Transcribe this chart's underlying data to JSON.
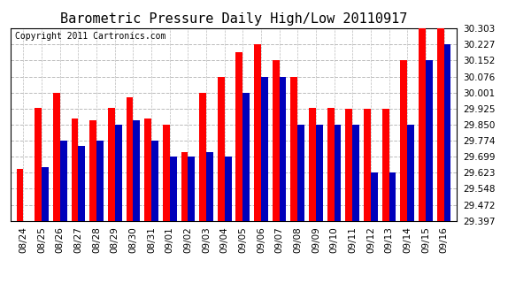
{
  "title": "Barometric Pressure Daily High/Low 20110917",
  "copyright_text": "Copyright 2011 Cartronics.com",
  "dates": [
    "08/24",
    "08/25",
    "08/26",
    "08/27",
    "08/28",
    "08/29",
    "08/30",
    "08/31",
    "09/01",
    "09/02",
    "09/03",
    "09/04",
    "09/05",
    "09/06",
    "09/07",
    "09/08",
    "09/09",
    "09/10",
    "09/11",
    "09/12",
    "09/13",
    "09/14",
    "09/15",
    "09/16"
  ],
  "highs": [
    29.64,
    29.93,
    30.001,
    29.88,
    29.87,
    29.93,
    29.98,
    29.88,
    29.85,
    29.72,
    30.001,
    30.076,
    30.19,
    30.227,
    30.152,
    30.076,
    29.93,
    29.93,
    29.925,
    29.925,
    29.925,
    30.152,
    30.303,
    30.303
  ],
  "lows": [
    29.397,
    29.65,
    29.774,
    29.75,
    29.774,
    29.85,
    29.87,
    29.774,
    29.699,
    29.699,
    29.72,
    29.699,
    30.001,
    30.076,
    30.076,
    29.85,
    29.85,
    29.85,
    29.85,
    29.623,
    29.623,
    29.85,
    30.152,
    30.227
  ],
  "ymin": 29.397,
  "ymax": 30.303,
  "yticks": [
    29.397,
    29.472,
    29.548,
    29.623,
    29.699,
    29.774,
    29.85,
    29.925,
    30.001,
    30.076,
    30.152,
    30.227,
    30.303
  ],
  "high_color": "#FF0000",
  "low_color": "#0000BB",
  "bg_color": "#FFFFFF",
  "grid_color": "#BBBBBB",
  "title_fontsize": 11,
  "copyright_fontsize": 7,
  "tick_fontsize": 7.5
}
